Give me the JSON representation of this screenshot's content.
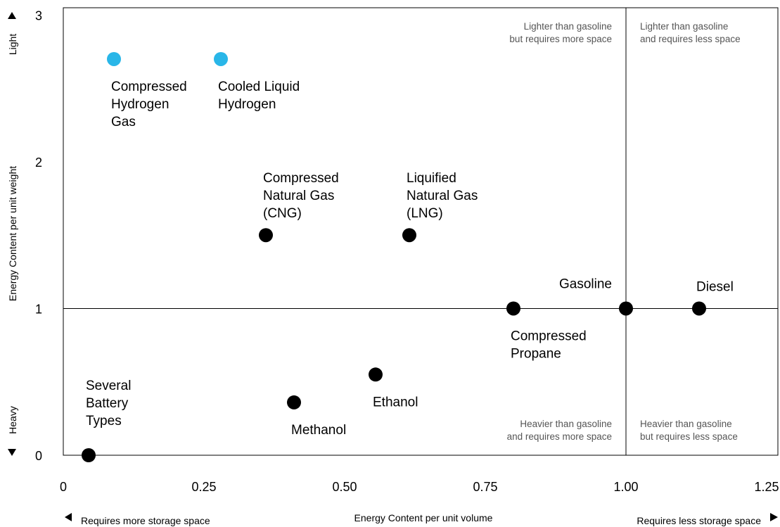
{
  "chart_data": {
    "type": "scatter",
    "xlabel": "Energy Content per unit volume",
    "ylabel": "Energy Content per unit weight",
    "xlim": [
      0,
      1.27
    ],
    "ylim": [
      0,
      3.05
    ],
    "x_ticks": [
      {
        "value": 0,
        "label": "0"
      },
      {
        "value": 0.25,
        "label": "0.25"
      },
      {
        "value": 0.5,
        "label": "0.50"
      },
      {
        "value": 0.75,
        "label": "0.75"
      },
      {
        "value": 1.0,
        "label": "1.00"
      },
      {
        "value": 1.25,
        "label": "1.25"
      }
    ],
    "y_ticks": [
      {
        "value": 0,
        "label": "0"
      },
      {
        "value": 1,
        "label": "1"
      },
      {
        "value": 2,
        "label": "2"
      },
      {
        "value": 3,
        "label": "3"
      }
    ],
    "reference_lines": {
      "x": 1.0,
      "y": 1.0
    },
    "colors": {
      "hydrogen": "#29b6e8",
      "default": "#000000"
    },
    "points": [
      {
        "name": "compressed-hydrogen-gas",
        "label": [
          "Compressed",
          "Hydrogen",
          "Gas"
        ],
        "x": 0.09,
        "y": 2.7,
        "color": "#29b6e8",
        "label_pos": "below"
      },
      {
        "name": "cooled-liquid-hydrogen",
        "label": [
          "Cooled Liquid",
          "Hydrogen"
        ],
        "x": 0.28,
        "y": 2.7,
        "color": "#29b6e8",
        "label_pos": "below"
      },
      {
        "name": "cng",
        "label": [
          "Compressed",
          "Natural Gas",
          "(CNG)"
        ],
        "x": 0.36,
        "y": 1.5,
        "color": "#000000",
        "label_pos": "above"
      },
      {
        "name": "lng",
        "label": [
          "Liquified",
          "Natural Gas",
          "(LNG)"
        ],
        "x": 0.615,
        "y": 1.5,
        "color": "#000000",
        "label_pos": "above"
      },
      {
        "name": "compressed-propane",
        "label": [
          "Compressed",
          "Propane"
        ],
        "x": 0.8,
        "y": 1.0,
        "color": "#000000",
        "label_pos": "below"
      },
      {
        "name": "gasoline",
        "label": [
          "Gasoline"
        ],
        "x": 1.0,
        "y": 1.0,
        "color": "#000000",
        "label_pos": "above-left"
      },
      {
        "name": "diesel",
        "label": [
          "Diesel"
        ],
        "x": 1.13,
        "y": 1.0,
        "color": "#000000",
        "label_pos": "above"
      },
      {
        "name": "ethanol",
        "label": [
          "Ethanol"
        ],
        "x": 0.555,
        "y": 0.55,
        "color": "#000000",
        "label_pos": "below"
      },
      {
        "name": "methanol",
        "label": [
          "Methanol"
        ],
        "x": 0.41,
        "y": 0.36,
        "color": "#000000",
        "label_pos": "below"
      },
      {
        "name": "several-battery-types",
        "label": [
          "Several",
          "Battery",
          "Types"
        ],
        "x": 0.045,
        "y": 0.0,
        "color": "#000000",
        "label_pos": "above"
      }
    ],
    "quadrant_labels": {
      "top_left": [
        "Lighter than gasoline",
        "but requires more space"
      ],
      "top_right": [
        "Lighter than gasoline",
        "and requires less space"
      ],
      "bottom_left": [
        "Heavier than gasoline",
        "and requires more space"
      ],
      "bottom_right": [
        "Heavier than gasoline",
        "but requires less space"
      ]
    },
    "y_direction_labels": {
      "top": "Light",
      "bottom": "Heavy"
    },
    "x_direction_labels": {
      "left": "Requires more storage space",
      "right": "Requires less storage space"
    }
  }
}
